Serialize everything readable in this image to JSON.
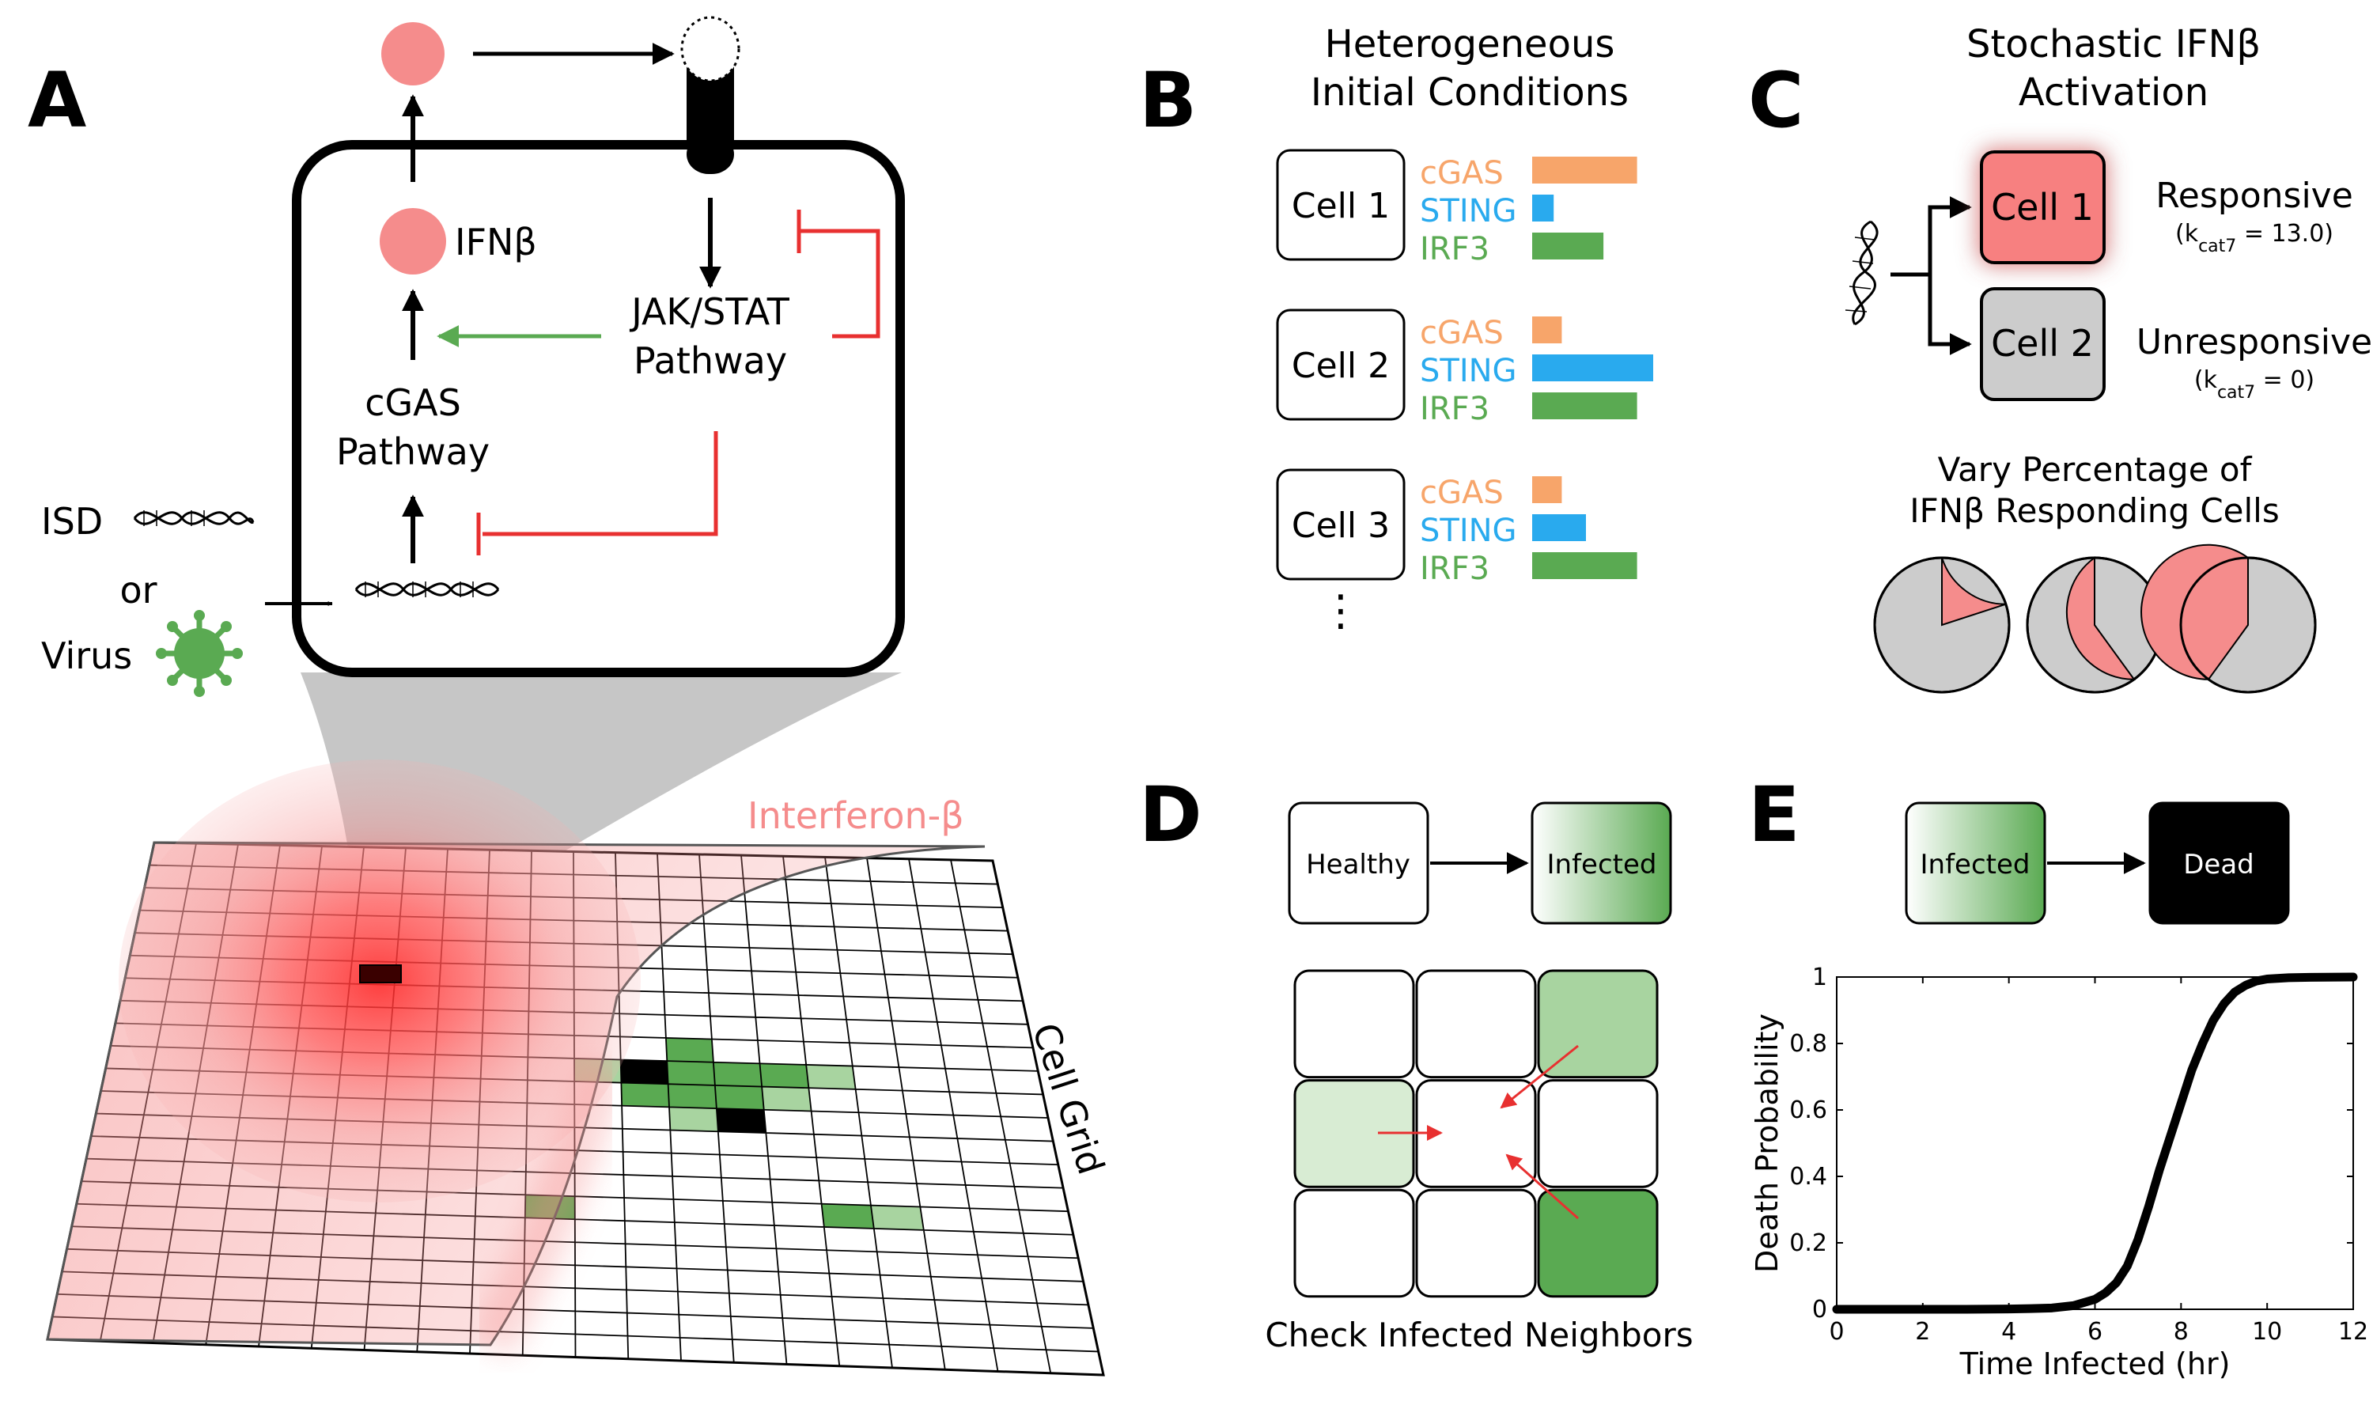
{
  "panels": {
    "A": {
      "letter": "A",
      "inputs": {
        "isd": "ISD",
        "or": "or",
        "virus": "Virus"
      },
      "labels": {
        "ifnb": "IFNβ",
        "jak_stat_line1": "JAK/STAT",
        "jak_stat_line2": "Pathway",
        "cgas_line1": "cGAS",
        "cgas_line2": "Pathway",
        "interferon": "Interferon-β",
        "cell_grid": "Cell Grid"
      }
    },
    "B": {
      "letter": "B",
      "title_line1": "Heterogeneous",
      "title_line2": "Initial Conditions",
      "cells": [
        {
          "label": "Cell 1",
          "levels": {
            "cGAS": 0.78,
            "STING": 0.16,
            "IRF3": 0.53
          }
        },
        {
          "label": "Cell 2",
          "levels": {
            "cGAS": 0.22,
            "STING": 0.9,
            "IRF3": 0.78
          }
        },
        {
          "label": "Cell 3",
          "levels": {
            "cGAS": 0.22,
            "STING": 0.4,
            "IRF3": 0.78
          }
        }
      ],
      "proteins": [
        "cGAS",
        "STING",
        "IRF3"
      ],
      "ellipsis": "⋮"
    },
    "C": {
      "letter": "C",
      "title_line1": "Stochastic IFNβ",
      "title_line2": "Activation",
      "cell1": "Cell 1",
      "cell2": "Cell 2",
      "responsive": "Responsive",
      "responsive_param": "(kcat7 = 13.0)",
      "unresponsive": "Unresponsive",
      "unresponsive_param": "(kcat7 = 0)",
      "vary_line1": "Vary Percentage of",
      "vary_line2": "IFNβ Responding Cells",
      "pie_fractions": [
        0.2,
        0.4,
        0.6
      ]
    },
    "D": {
      "letter": "D",
      "healthy": "Healthy",
      "infected": "Infected",
      "caption": "Check Infected Neighbors"
    },
    "E": {
      "letter": "E",
      "infected": "Infected",
      "dead": "Dead"
    }
  },
  "chart_data": {
    "type": "line",
    "title": "",
    "xlabel": "Time Infected (hr)",
    "ylabel": "Death Probability",
    "xlim": [
      0,
      12
    ],
    "ylim": [
      0,
      1
    ],
    "xticks": [
      0,
      2,
      4,
      6,
      8,
      10,
      12
    ],
    "yticks": [
      0,
      0.2,
      0.4,
      0.6,
      0.8,
      1
    ],
    "yticklabels": [
      "0",
      "0.2",
      "0.4",
      "0.6",
      "0.8",
      "1"
    ],
    "series": [
      {
        "x": [
          0,
          1,
          2,
          3,
          4,
          4.5,
          5,
          5.5,
          6,
          6.25,
          6.5,
          6.75,
          7,
          7.25,
          7.5,
          7.75,
          8,
          8.25,
          8.5,
          8.75,
          9,
          9.25,
          9.5,
          9.75,
          10,
          10.5,
          11,
          12
        ],
        "y": [
          0,
          0,
          0,
          0,
          0.001,
          0.002,
          0.004,
          0.011,
          0.03,
          0.05,
          0.08,
          0.13,
          0.21,
          0.31,
          0.42,
          0.52,
          0.62,
          0.72,
          0.8,
          0.87,
          0.92,
          0.955,
          0.975,
          0.988,
          0.994,
          0.998,
          0.999,
          1.0
        ]
      }
    ]
  },
  "colors": {
    "cGAS": "#f7a56a",
    "STING": "#29aaee",
    "IRF3": "#5aaa52",
    "ifn_pink": "#f58c8c",
    "inhibit_red": "#e83030",
    "activate_green": "#5aaa52",
    "cell_gray": "#cccccc",
    "infected_green": "#5aaa52"
  }
}
